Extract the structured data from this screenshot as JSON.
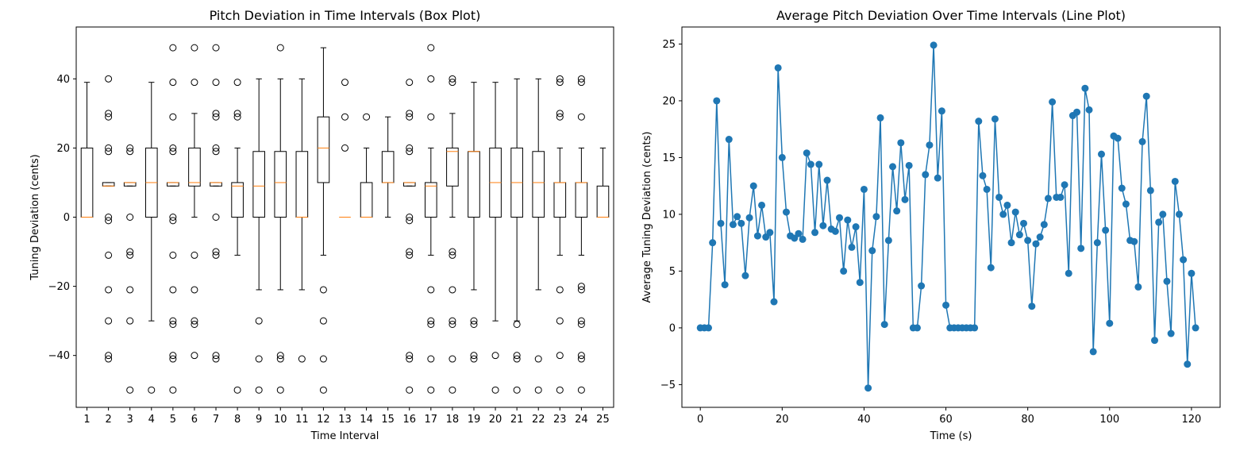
{
  "chart_data": [
    {
      "type": "box",
      "title": "Pitch Deviation in Time Intervals (Box Plot)",
      "xlabel": "Time Interval",
      "ylabel": "Tuning Deviation (cents)",
      "categories": [
        "1",
        "2",
        "3",
        "4",
        "5",
        "6",
        "7",
        "8",
        "9",
        "10",
        "11",
        "12",
        "13",
        "14",
        "15",
        "16",
        "17",
        "18",
        "19",
        "20",
        "21",
        "22",
        "23",
        "24",
        "25"
      ],
      "ylim": [
        -55,
        55
      ],
      "yticks": [
        -40,
        -20,
        0,
        20,
        40
      ],
      "grid": false,
      "boxes": [
        {
          "whisker_low": 0,
          "q1": 0,
          "median": 0,
          "q3": 20,
          "whisker_high": 39,
          "outliers": []
        },
        {
          "whisker_low": 9,
          "q1": 9,
          "median": 9,
          "q3": 10,
          "whisker_high": 10,
          "outliers": [
            40,
            30,
            29,
            20,
            19,
            0,
            -1,
            -11,
            -21,
            -30,
            -40,
            -41
          ]
        },
        {
          "whisker_low": 9,
          "q1": 9,
          "median": 10,
          "q3": 10,
          "whisker_high": 10,
          "outliers": [
            20,
            19,
            0,
            -10,
            -11,
            -21,
            -30,
            -50
          ]
        },
        {
          "whisker_low": -30,
          "q1": 0,
          "median": 10,
          "q3": 20,
          "whisker_high": 39,
          "outliers": [
            -50
          ]
        },
        {
          "whisker_low": 9,
          "q1": 9,
          "median": 10,
          "q3": 10,
          "whisker_high": 10,
          "outliers": [
            49,
            39,
            29,
            20,
            19,
            0,
            -1,
            -11,
            -21,
            -30,
            -31,
            -40,
            -41,
            -50
          ]
        },
        {
          "whisker_low": 0,
          "q1": 9,
          "median": 10,
          "q3": 20,
          "whisker_high": 30,
          "outliers": [
            49,
            39,
            -11,
            -21,
            -30,
            -31,
            -40
          ]
        },
        {
          "whisker_low": 9,
          "q1": 9,
          "median": 10,
          "q3": 10,
          "whisker_high": 10,
          "outliers": [
            49,
            39,
            30,
            29,
            20,
            19,
            0,
            -10,
            -11,
            -40,
            -41
          ]
        },
        {
          "whisker_low": -11,
          "q1": 0,
          "median": 9,
          "q3": 10,
          "whisker_high": 20,
          "outliers": [
            39,
            30,
            29,
            -50
          ]
        },
        {
          "whisker_low": -21,
          "q1": 0,
          "median": 9,
          "q3": 19,
          "whisker_high": 40,
          "outliers": [
            -30,
            -41,
            -50
          ]
        },
        {
          "whisker_low": -21,
          "q1": 0,
          "median": 10,
          "q3": 19,
          "whisker_high": 40,
          "outliers": [
            49,
            -40,
            -41,
            -50
          ]
        },
        {
          "whisker_low": -21,
          "q1": 0,
          "median": 0,
          "q3": 19,
          "whisker_high": 40,
          "outliers": [
            -41
          ]
        },
        {
          "whisker_low": -11,
          "q1": 10,
          "median": 20,
          "q3": 29,
          "whisker_high": 49,
          "outliers": [
            -21,
            -30,
            -41,
            -50
          ]
        },
        {
          "whisker_low": 0,
          "q1": 0,
          "median": 0,
          "q3": 0,
          "whisker_high": 0,
          "outliers": [
            39,
            29,
            20
          ]
        },
        {
          "whisker_low": 0,
          "q1": 0,
          "median": 0,
          "q3": 10,
          "whisker_high": 20,
          "outliers": [
            29
          ]
        },
        {
          "whisker_low": 0,
          "q1": 10,
          "median": 10,
          "q3": 19,
          "whisker_high": 29,
          "outliers": []
        },
        {
          "whisker_low": 9,
          "q1": 9,
          "median": 10,
          "q3": 10,
          "whisker_high": 10,
          "outliers": [
            39,
            30,
            29,
            20,
            19,
            0,
            -1,
            -10,
            -11,
            -40,
            -41,
            -50
          ]
        },
        {
          "whisker_low": -11,
          "q1": 0,
          "median": 9,
          "q3": 10,
          "whisker_high": 20,
          "outliers": [
            49,
            40,
            29,
            -21,
            -30,
            -31,
            -41,
            -50
          ]
        },
        {
          "whisker_low": 0,
          "q1": 9,
          "median": 19,
          "q3": 20,
          "whisker_high": 30,
          "outliers": [
            40,
            39,
            -10,
            -11,
            -21,
            -30,
            -31,
            -41,
            -50
          ]
        },
        {
          "whisker_low": -21,
          "q1": 0,
          "median": 19,
          "q3": 19,
          "whisker_high": 39,
          "outliers": [
            -30,
            -31,
            -40,
            -41
          ]
        },
        {
          "whisker_low": -30,
          "q1": 0,
          "median": 10,
          "q3": 20,
          "whisker_high": 39,
          "outliers": [
            -40,
            -50
          ]
        },
        {
          "whisker_low": -30,
          "q1": 0,
          "median": 10,
          "q3": 20,
          "whisker_high": 40,
          "outliers": [
            -31,
            -40,
            -41,
            -50
          ]
        },
        {
          "whisker_low": -21,
          "q1": 0,
          "median": 10,
          "q3": 19,
          "whisker_high": 40,
          "outliers": [
            -41,
            -50
          ]
        },
        {
          "whisker_low": -11,
          "q1": 0,
          "median": 10,
          "q3": 10,
          "whisker_high": 20,
          "outliers": [
            40,
            39,
            30,
            29,
            -21,
            -30,
            -40,
            -50
          ]
        },
        {
          "whisker_low": -11,
          "q1": 0,
          "median": 10,
          "q3": 10,
          "whisker_high": 20,
          "outliers": [
            40,
            39,
            29,
            -20,
            -21,
            -30,
            -31,
            -40,
            -41,
            -50
          ]
        },
        {
          "whisker_low": 0,
          "q1": 0,
          "median": 0,
          "q3": 9,
          "whisker_high": 20,
          "outliers": []
        }
      ],
      "colors": {
        "box": "#000000",
        "median": "#ff7f0e"
      }
    },
    {
      "type": "line",
      "title": "Average Pitch Deviation Over Time Intervals (Line Plot)",
      "xlabel": "Time (s)",
      "ylabel": "Average Tuning Deviation (cents)",
      "xlim": [
        -4.5,
        127
      ],
      "ylim": [
        -7,
        26.5
      ],
      "xticks": [
        0,
        20,
        40,
        60,
        80,
        100,
        120
      ],
      "yticks": [
        -5,
        0,
        5,
        10,
        15,
        20,
        25
      ],
      "grid": false,
      "series": [
        {
          "color": "#1f77b4",
          "x": [
            0,
            1,
            2,
            3,
            4,
            5,
            6,
            7,
            8,
            9,
            10,
            11,
            12,
            13,
            14,
            15,
            16,
            17,
            18,
            19,
            20,
            21,
            22,
            23,
            24,
            25,
            26,
            27,
            28,
            29,
            30,
            31,
            32,
            33,
            34,
            35,
            36,
            37,
            38,
            39,
            40,
            41,
            42,
            43,
            44,
            45,
            46,
            47,
            48,
            49,
            50,
            51,
            52,
            53,
            54,
            55,
            56,
            57,
            58,
            59,
            60,
            61,
            62,
            63,
            64,
            65,
            66,
            67,
            68,
            69,
            70,
            71,
            72,
            73,
            74,
            75,
            76,
            77,
            78,
            79,
            80,
            81,
            82,
            83,
            84,
            85,
            86,
            87,
            88,
            89,
            90,
            91,
            92,
            93,
            94,
            95,
            96,
            97,
            98,
            99,
            100,
            101,
            102,
            103,
            104,
            105,
            106,
            107,
            108,
            109,
            110,
            111,
            112,
            113,
            114,
            115,
            116,
            117,
            118,
            119,
            120,
            121
          ],
          "y": [
            0,
            0,
            0,
            7.5,
            20,
            9.2,
            3.8,
            16.6,
            9.1,
            9.8,
            9.2,
            4.6,
            9.7,
            12.5,
            8.1,
            10.8,
            8.0,
            8.4,
            2.3,
            22.9,
            15.0,
            10.2,
            8.1,
            7.9,
            8.3,
            7.8,
            15.4,
            14.4,
            8.4,
            14.4,
            9.0,
            13.0,
            8.7,
            8.5,
            9.7,
            5.0,
            9.5,
            7.1,
            8.9,
            4.0,
            12.2,
            -5.3,
            6.8,
            9.8,
            18.5,
            0.3,
            7.7,
            14.2,
            10.3,
            16.3,
            11.3,
            14.3,
            0.0,
            0.0,
            3.7,
            13.5,
            16.1,
            24.9,
            13.2,
            19.1,
            2.0,
            0,
            0,
            0,
            0,
            0,
            0,
            0,
            18.2,
            13.4,
            12.2,
            5.3,
            18.4,
            11.5,
            10.0,
            10.8,
            7.5,
            10.2,
            8.2,
            9.2,
            7.7,
            1.9,
            7.4,
            8.0,
            9.1,
            11.4,
            19.9,
            11.5,
            11.5,
            12.6,
            4.8,
            18.7,
            19.0,
            7.0,
            21.1,
            19.2,
            -2.1,
            7.5,
            15.3,
            8.6,
            0.4,
            16.9,
            16.7,
            12.3,
            10.9,
            7.7,
            7.6,
            3.6,
            16.4,
            20.4,
            12.1,
            -1.1,
            9.3,
            10.0,
            4.1,
            -0.5,
            12.9,
            10.0,
            6.0,
            -3.2,
            4.8,
            0.0
          ]
        }
      ]
    }
  ]
}
